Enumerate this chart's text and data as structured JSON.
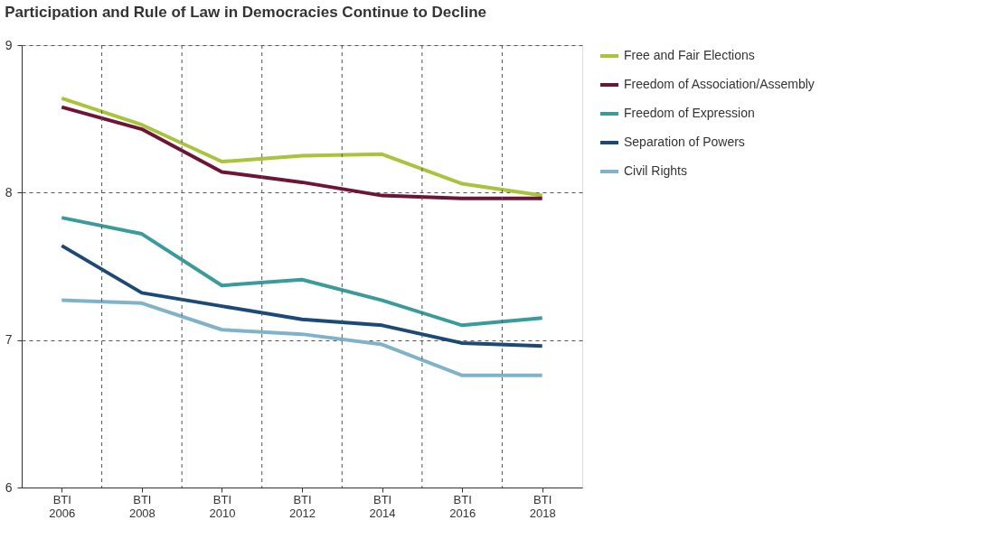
{
  "chart_data": {
    "type": "line",
    "title": "Participation and Rule of Law in Democracies Continue to Decline",
    "categories": [
      "BTI 2006",
      "BTI 2008",
      "BTI 2010",
      "BTI 2012",
      "BTI 2014",
      "BTI 2016",
      "BTI 2018"
    ],
    "series": [
      {
        "name": "Free and Fair Elections",
        "color": "#a8c43a",
        "values": [
          8.64,
          8.46,
          8.21,
          8.25,
          8.26,
          8.06,
          7.98
        ]
      },
      {
        "name": "Freedom of Association/Assembly",
        "color": "#6e1437",
        "values": [
          8.58,
          8.43,
          8.14,
          8.07,
          7.98,
          7.96,
          7.96
        ]
      },
      {
        "name": "Freedom of Expression",
        "color": "#3a9c9a",
        "values": [
          7.83,
          7.72,
          7.37,
          7.41,
          7.27,
          7.1,
          7.15
        ]
      },
      {
        "name": "Separation of Powers",
        "color": "#1c4a78",
        "values": [
          7.64,
          7.32,
          7.23,
          7.14,
          7.1,
          6.98,
          6.96
        ]
      },
      {
        "name": "Civil Rights",
        "color": "#7fb3cc",
        "values": [
          7.27,
          7.25,
          7.07,
          7.04,
          6.97,
          6.76,
          6.76
        ]
      }
    ],
    "ylim": [
      6,
      9
    ],
    "yticks": [
      6,
      7,
      8,
      9
    ],
    "grid": true,
    "legend": "right",
    "line_style": "solid",
    "marker": "none"
  }
}
